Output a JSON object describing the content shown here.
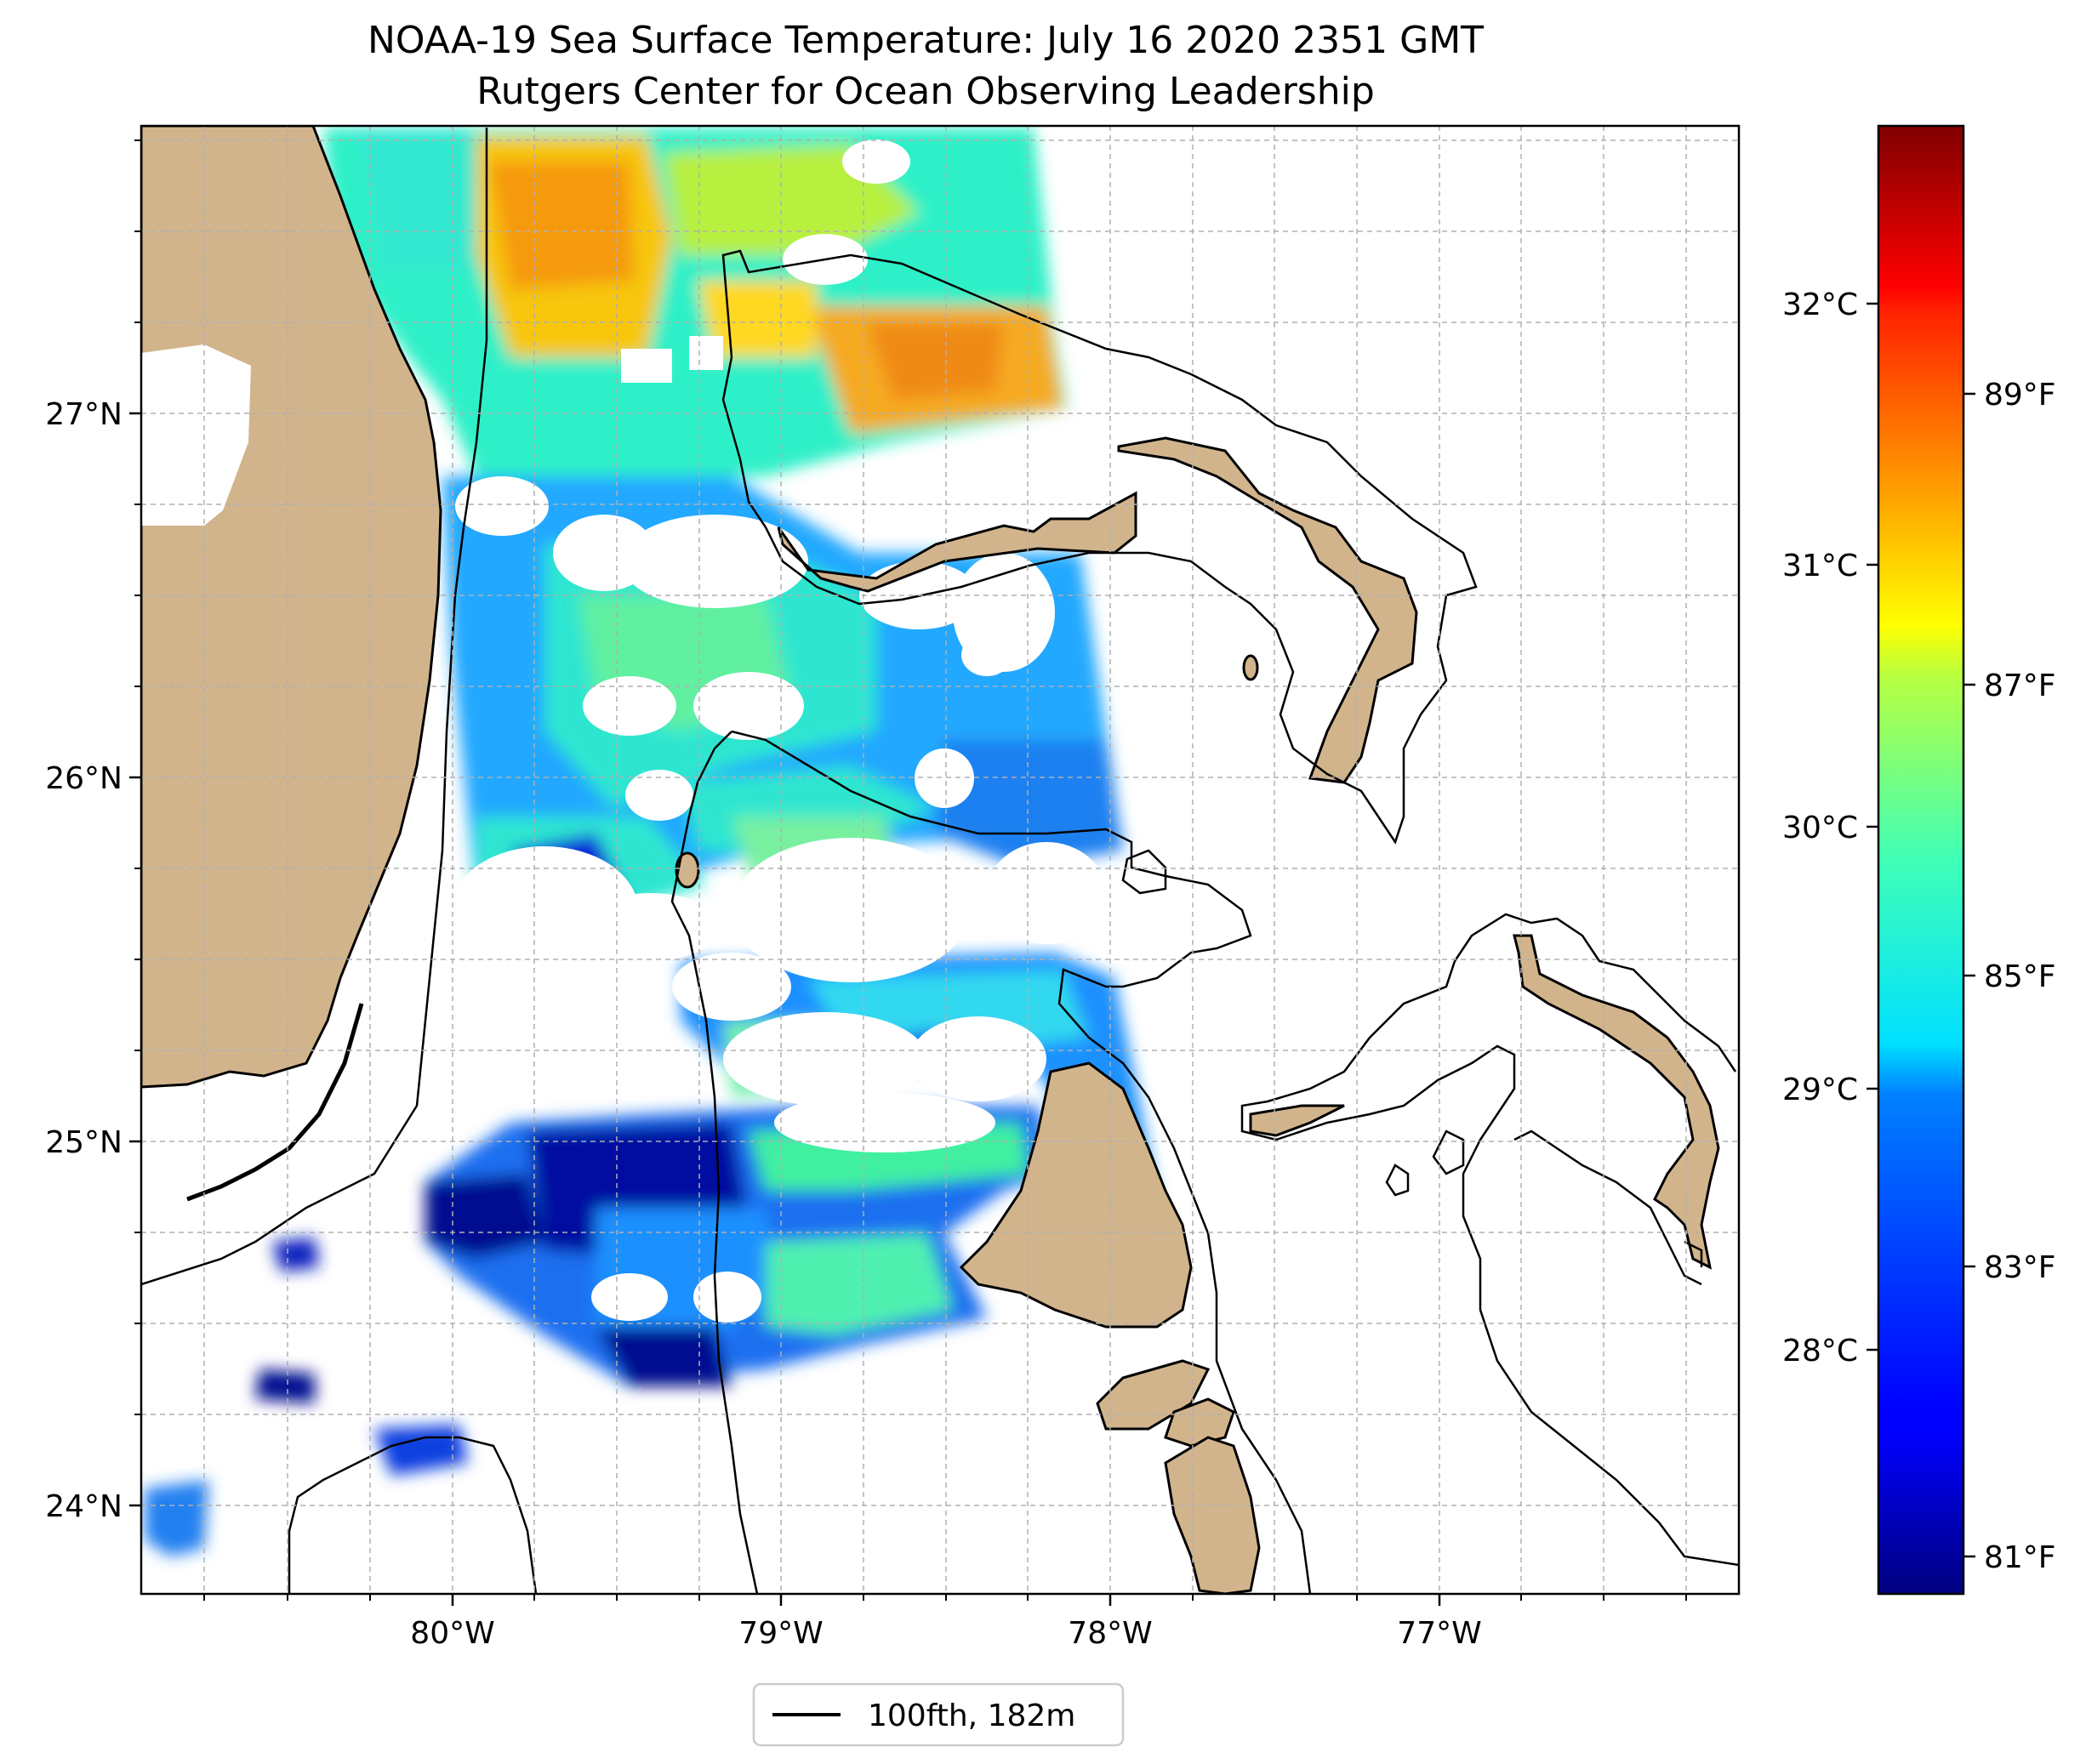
{
  "title": {
    "line1": "NOAA-19 Sea Surface Temperature: July 16 2020 2351 GMT",
    "line2": "Rutgers Center for Ocean Observing Leadership"
  },
  "map": {
    "lon_ticks": [
      {
        "value": -80,
        "label": "80°W"
      },
      {
        "value": -79,
        "label": "79°W"
      },
      {
        "value": -78,
        "label": "78°W"
      },
      {
        "value": -77,
        "label": "77°W"
      }
    ],
    "lat_ticks": [
      {
        "value": 24,
        "label": "24°N"
      },
      {
        "value": 25,
        "label": "25°N"
      },
      {
        "value": 26,
        "label": "26°N"
      },
      {
        "value": 27,
        "label": "27°N"
      }
    ],
    "gridlines": true,
    "land_color": "#d2b48c",
    "missing_data_color": "#ffffff"
  },
  "colorbar": {
    "colormap": "jet",
    "celsius_ticks": [
      {
        "value": 28,
        "label": "28°C"
      },
      {
        "value": 29,
        "label": "29°C"
      },
      {
        "value": 30,
        "label": "30°C"
      },
      {
        "value": 31,
        "label": "31°C"
      },
      {
        "value": 32,
        "label": "32°C"
      }
    ],
    "fahrenheit_ticks": [
      {
        "value": 81,
        "label": "81°F"
      },
      {
        "value": 83,
        "label": "83°F"
      },
      {
        "value": 85,
        "label": "85°F"
      },
      {
        "value": 87,
        "label": "87°F"
      },
      {
        "value": 89,
        "label": "89°F"
      }
    ]
  },
  "legend": {
    "entries": [
      {
        "label": "100fth, 182m",
        "color": "#000000"
      }
    ],
    "placement": "bottom-center"
  }
}
